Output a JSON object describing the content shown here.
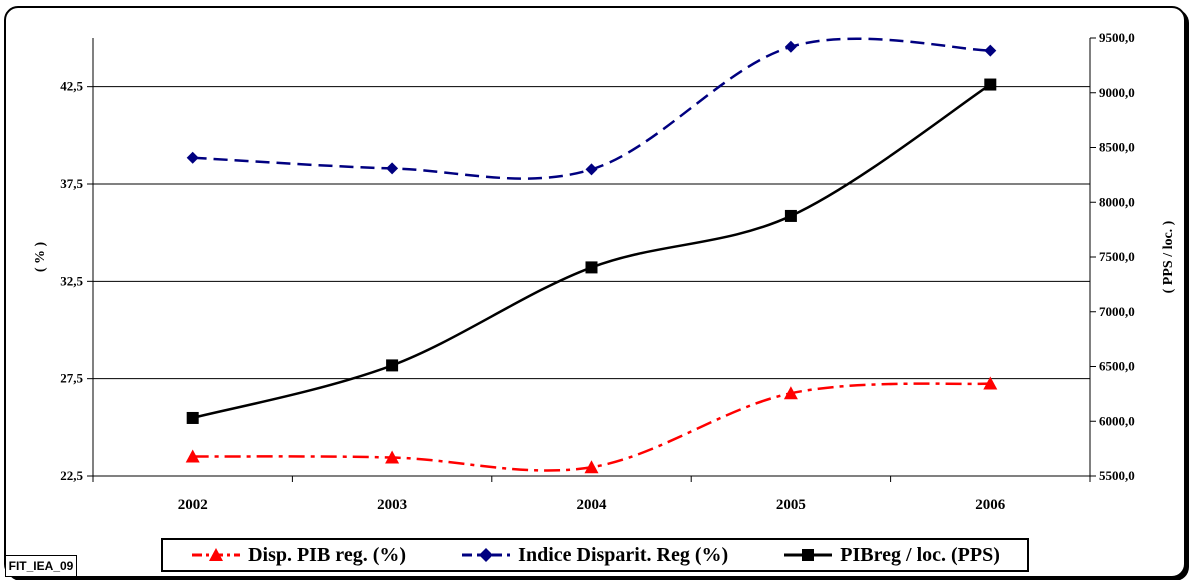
{
  "chart_data": {
    "type": "line",
    "categories": [
      "2002",
      "2003",
      "2004",
      "2005",
      "2006"
    ],
    "y_left": {
      "label": "( % )",
      "range": [
        22.5,
        45.0
      ],
      "ticks": [
        "22,5",
        "27,5",
        "32,5",
        "37,5",
        "42,5"
      ],
      "tick_values": [
        22.5,
        27.5,
        32.5,
        37.5,
        42.5
      ]
    },
    "y_right": {
      "label": "( PPS / loc. )",
      "range": [
        5500,
        9500
      ],
      "ticks": [
        "5500,0",
        "6000,0",
        "6500,0",
        "7000,0",
        "7500,0",
        "8000,0",
        "8500,0",
        "9000,0",
        "9500,0"
      ],
      "tick_values": [
        5500,
        6000,
        6500,
        7000,
        7500,
        8000,
        8500,
        9000,
        9500
      ]
    },
    "grid": "horizontal",
    "legend_position": "bottom",
    "series": [
      {
        "name": "Disp. PIB reg. (%)",
        "axis": "left",
        "color": "#ff0000",
        "marker": "triangle",
        "dash": "dashdot",
        "values": [
          23.5,
          23.45,
          22.95,
          26.75,
          27.25
        ]
      },
      {
        "name": "Indice Disparit. Reg (%)",
        "axis": "left",
        "color": "#000080",
        "marker": "diamond",
        "dash": "dash",
        "values": [
          38.85,
          38.3,
          38.25,
          44.55,
          44.35
        ]
      },
      {
        "name": "PIBreg / loc. (PPS)",
        "axis": "right",
        "color": "#000000",
        "marker": "square",
        "dash": "solid",
        "values": [
          6030,
          6510,
          7405,
          7875,
          9075
        ]
      }
    ]
  },
  "footer": {
    "code": "FIT_IEA_09"
  }
}
